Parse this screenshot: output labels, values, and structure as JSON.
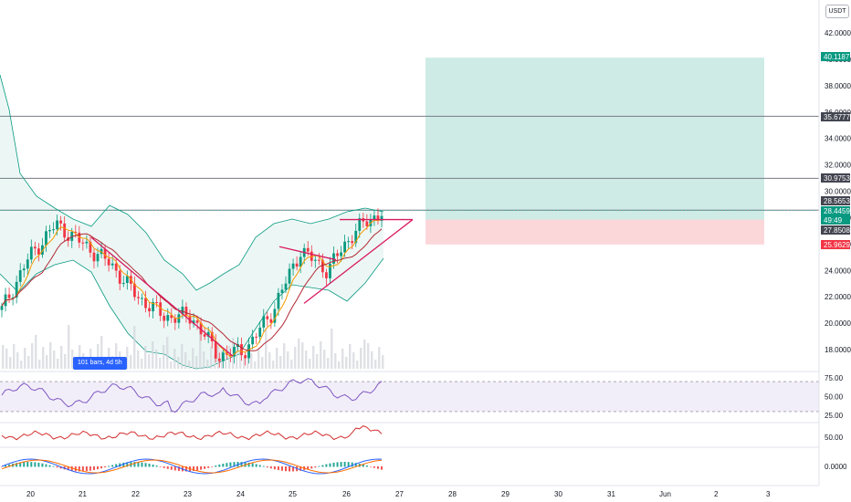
{
  "currency": "USDT",
  "bars_badge": "101 bars, 4d 5h",
  "price_axis": [
    "42.0000",
    "40.0000",
    "38.0000",
    "36.0000",
    "34.0000",
    "32.0000",
    "30.0000",
    "28.0000",
    "26.0000",
    "24.0000",
    "22.0000",
    "20.0000",
    "18.0000"
  ],
  "price_labels": [
    {
      "text": "40.1187",
      "color": "#089981"
    },
    {
      "text": "35.6777",
      "color": "#434651"
    },
    {
      "text": "30.9753",
      "color": "#434651"
    },
    {
      "text": "28.5653",
      "color": "#434651"
    },
    {
      "text": "28.4459",
      "color": "#089981"
    },
    {
      "text": "49:49",
      "color": "#089981"
    },
    {
      "text": "27.8508",
      "color": "#434651"
    },
    {
      "text": "25.9629",
      "color": "#f23645"
    }
  ],
  "rsi_axis": [
    "75.00",
    "50.00",
    "25.00"
  ],
  "stoch_axis": [
    "50.00"
  ],
  "macd_axis": [
    "0.0000"
  ],
  "x_axis": [
    "20",
    "21",
    "22",
    "23",
    "24",
    "25",
    "26",
    "27",
    "28",
    "29",
    "30",
    "31",
    "Jun",
    "2",
    "3"
  ],
  "chart_data": {
    "type": "candlestick",
    "x": [
      "20",
      "21",
      "22",
      "23",
      "24",
      "25",
      "26",
      "27",
      "28",
      "29",
      "30",
      "31",
      "Jun",
      "2",
      "3"
    ],
    "ylim": [
      17,
      43
    ],
    "close_path": [
      [
        "20",
        21.0
      ],
      [
        "20",
        25.0
      ],
      [
        "21",
        27.5
      ],
      [
        "21",
        26.0
      ],
      [
        "21",
        24.5
      ],
      [
        "22",
        22.0
      ],
      [
        "22",
        20.5
      ],
      [
        "23",
        20.5
      ],
      [
        "23",
        17.5
      ],
      [
        "24",
        18.0
      ],
      [
        "24",
        21.0
      ],
      [
        "25",
        25.5
      ],
      [
        "25",
        24.0
      ],
      [
        "26",
        27.0
      ],
      [
        "26",
        28.4459
      ]
    ],
    "position": {
      "entry": 27.8508,
      "target": 40.1187,
      "stop": 25.9629
    },
    "horizontal_levels": [
      35.6777,
      30.9753,
      28.5653
    ],
    "triangle": {
      "top": 27.8508,
      "bottom_start": 21.5
    },
    "rsi_range": [
      25,
      75
    ],
    "rsi_last": 68
  }
}
